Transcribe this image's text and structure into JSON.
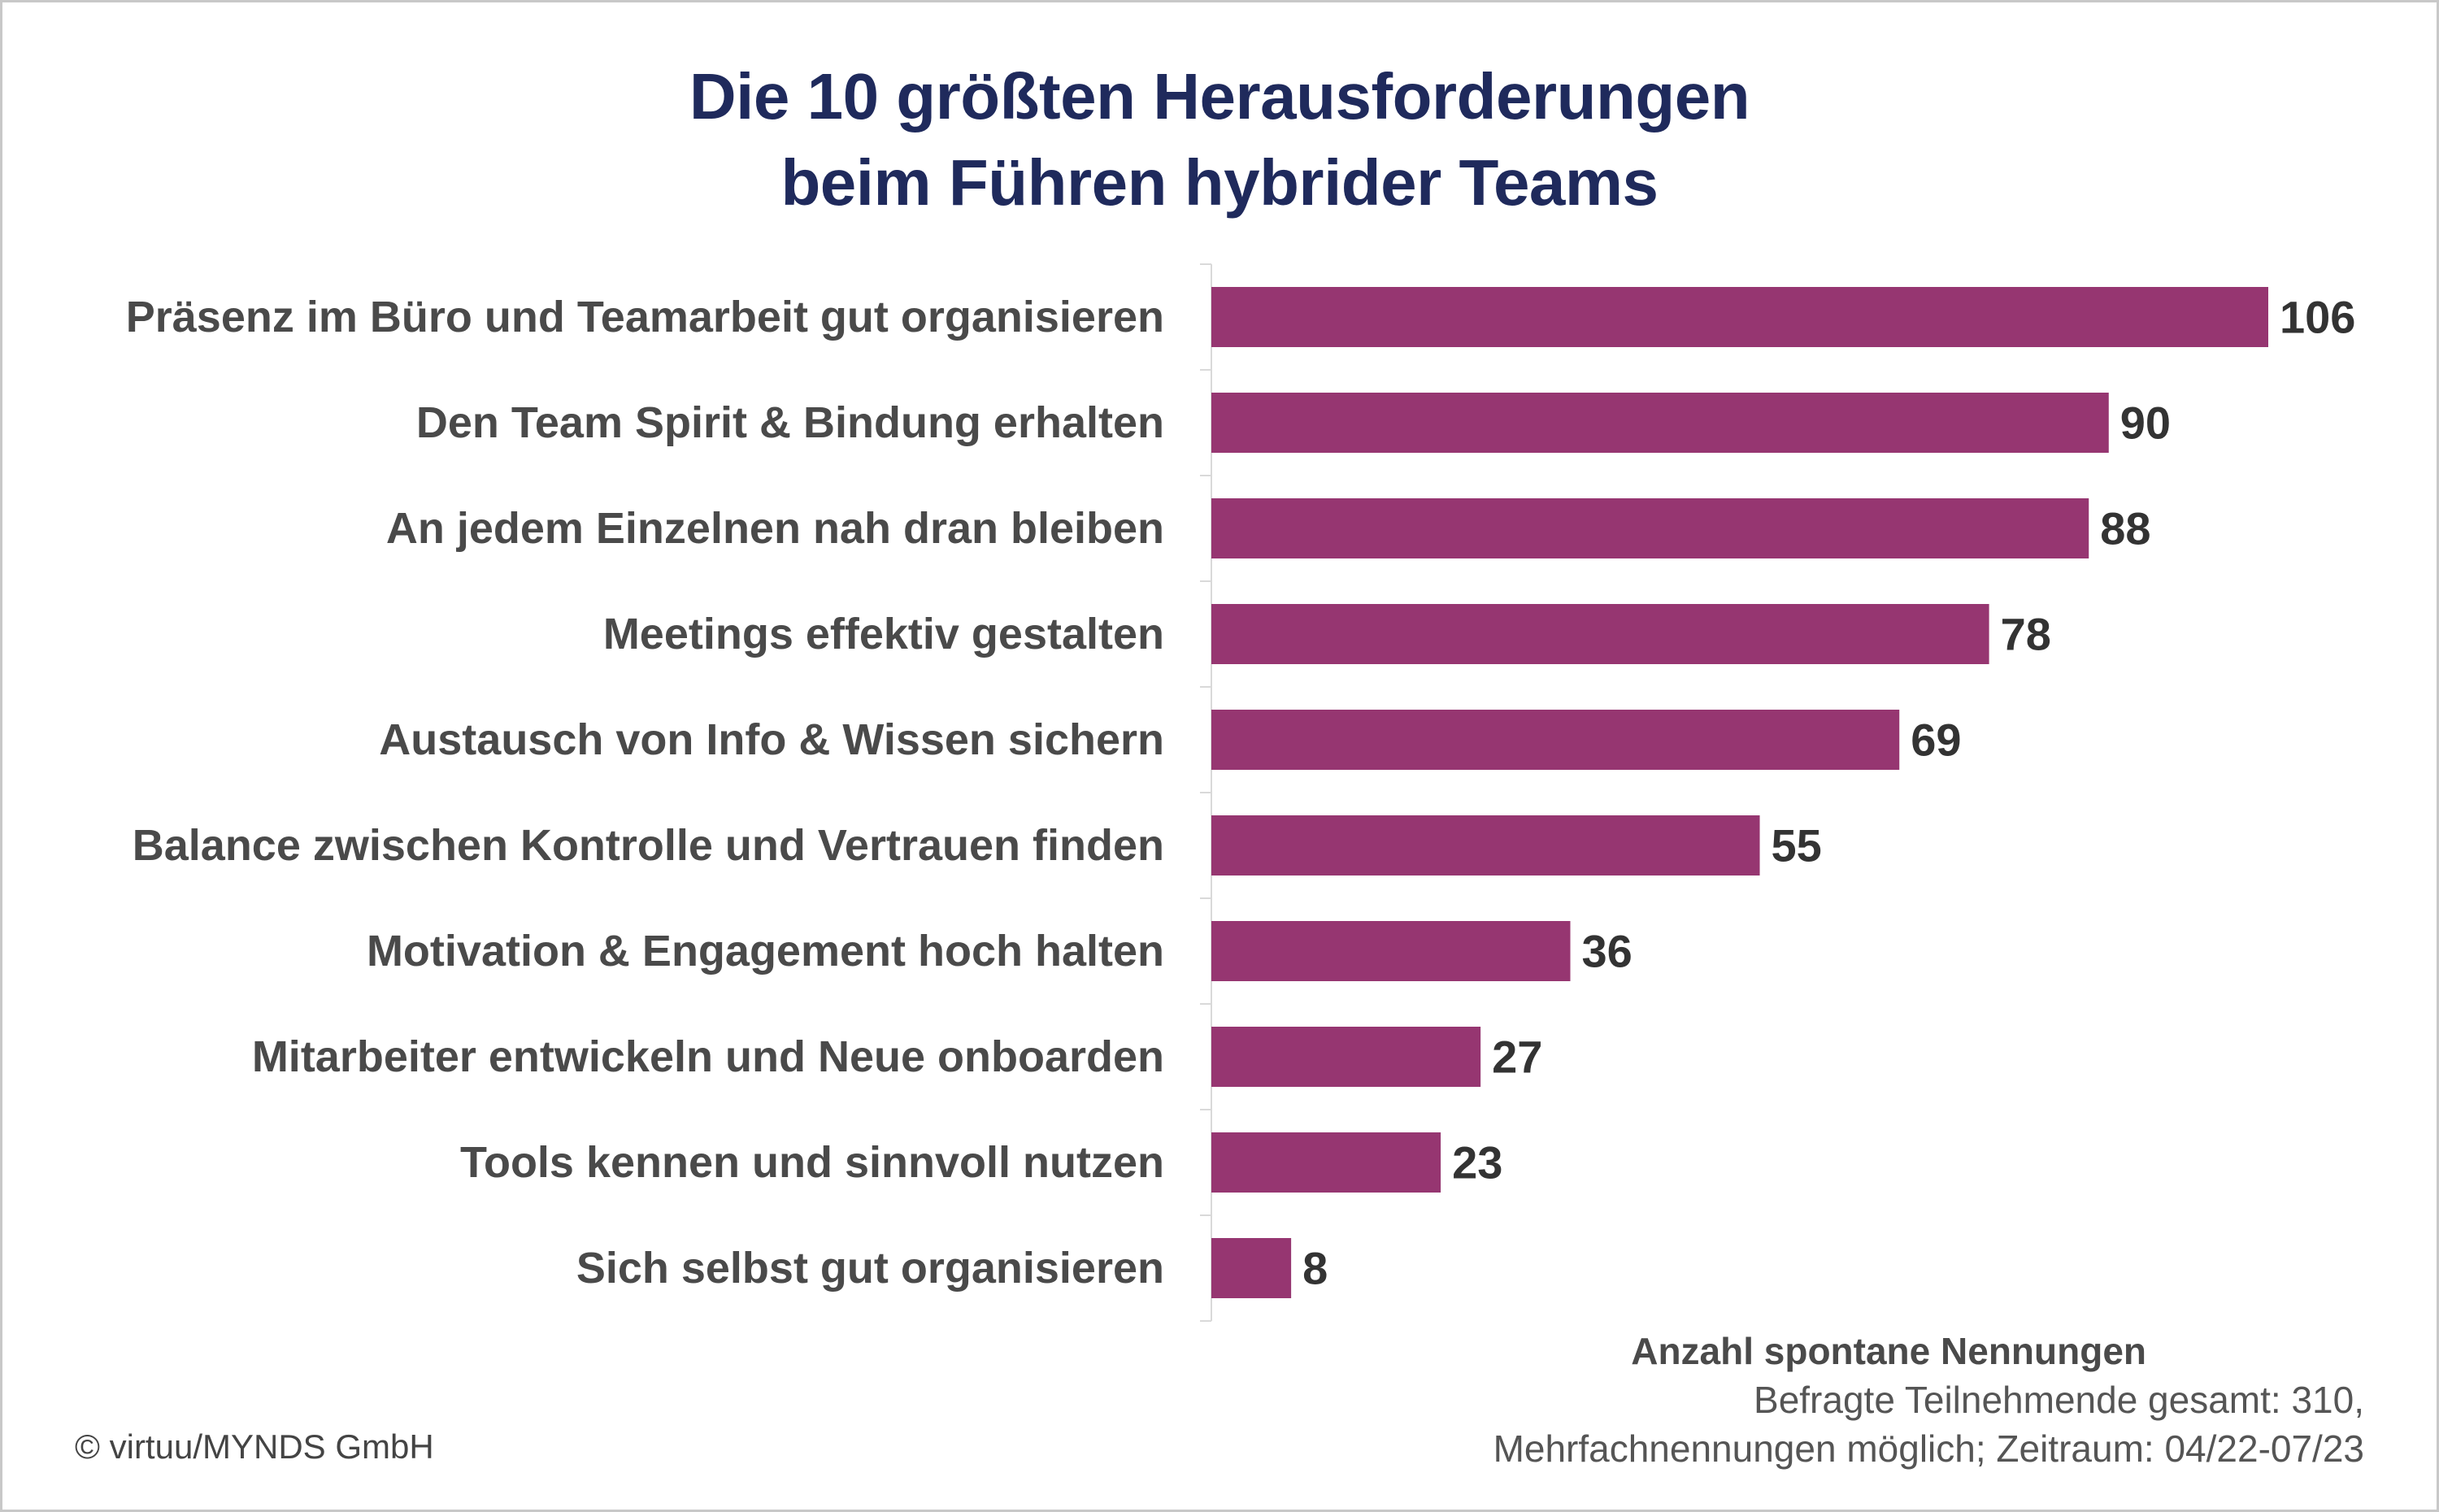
{
  "chart_data": {
    "type": "bar",
    "orientation": "horizontal",
    "title": "Die 10 größten Herausforderungen beim Führen hybrider Teams",
    "title_lines": [
      "Die 10 größten Herausforderungen",
      "beim Führen hybrider Teams"
    ],
    "categories": [
      "Präsenz im Büro und Teamarbeit gut organisieren",
      "Den Team Spirit & Bindung erhalten",
      "An jedem Einzelnen nah dran bleiben",
      "Meetings effektiv gestalten",
      "Austausch von Info & Wissen sichern",
      "Balance zwischen Kontrolle und Vertrauen finden",
      "Motivation & Engagement hoch halten",
      "Mitarbeiter entwickeln und Neue onboarden",
      "Tools kennen und sinnvoll nutzen",
      "Sich selbst gut organisieren"
    ],
    "values": [
      106,
      90,
      88,
      78,
      69,
      55,
      36,
      27,
      23,
      8
    ],
    "xlim": [
      0,
      106
    ],
    "grid": false,
    "data_labels": true
  },
  "colors": {
    "bar": "#963671",
    "title": "#1f2a5c",
    "label": "#4a4a4a",
    "axis": "#d9d9d9"
  },
  "footnote": {
    "heading": "Anzahl spontane Nennungen",
    "line1": "Befragte Teilnehmende gesamt: 310,",
    "line2": "Mehrfachnennungen möglich; Zeitraum: 04/22-07/23"
  },
  "copyright": "© virtuu/MYNDS GmbH"
}
